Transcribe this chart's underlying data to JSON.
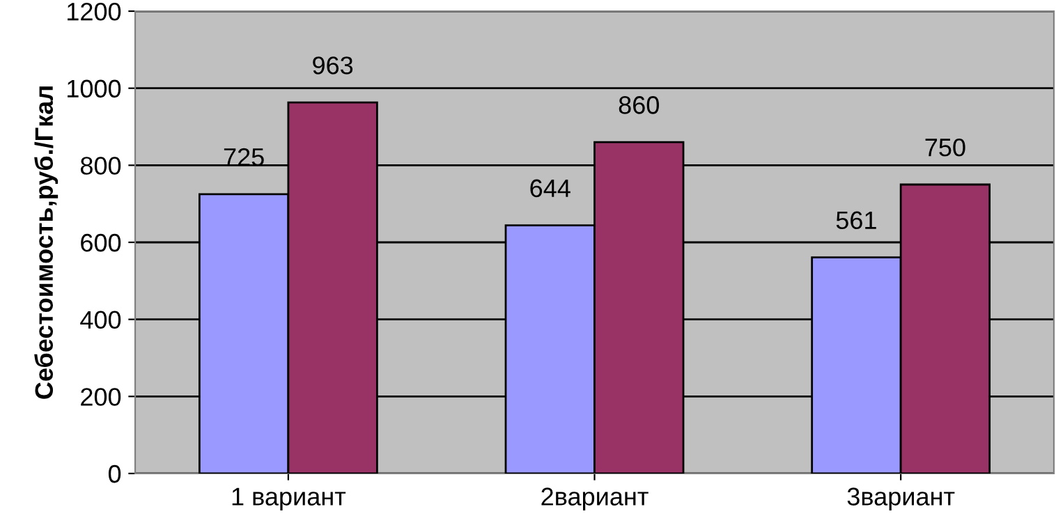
{
  "chart_data": {
    "type": "bar",
    "ylabel": "Себестоимость,руб./Гкал",
    "categories": [
      "1 вариант",
      "2вариант",
      "3вариант"
    ],
    "series": [
      {
        "color": "#9999ff",
        "values": [
          725,
          644,
          561
        ]
      },
      {
        "color": "#993366",
        "values": [
          963,
          860,
          750
        ]
      }
    ],
    "ylim": [
      0,
      1200
    ],
    "yticks": [
      0,
      200,
      400,
      600,
      800,
      1000,
      1200
    ],
    "grid": "y",
    "data_labels": true,
    "legend": false
  }
}
